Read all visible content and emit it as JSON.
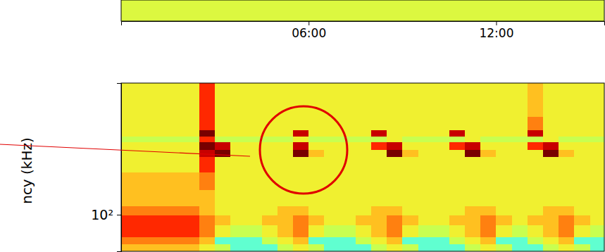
{
  "chart_data": [
    {
      "type": "heatmap",
      "x_edges": [
        0,
        0.5,
        1,
        1.5,
        2,
        2.5,
        3,
        3.5,
        4,
        4.5,
        5,
        5.5,
        6,
        6.5,
        7,
        7.5,
        8,
        8.5,
        9,
        9.5,
        10,
        10.5,
        11,
        11.5,
        12,
        12.5,
        13,
        13.5,
        14,
        14.5,
        15,
        15.5
      ],
      "z": [
        [
          4.5,
          4.5,
          4.5,
          4.5,
          4.5,
          4.5,
          4.5,
          4.5,
          4.5,
          4.5,
          4.5,
          4.5,
          4.5,
          4.5,
          4.5,
          4.5,
          4.5,
          4.5,
          4.5,
          4.5,
          4.5,
          4.5,
          4.5,
          4.5,
          4.5,
          4.5,
          4.5,
          4.5,
          4.5,
          4.5,
          4.5
        ]
      ],
      "zlim": [
        0,
        10
      ],
      "xlim": [
        0,
        15.46
      ],
      "xticks": [
        {
          "value": 6,
          "label": "06:00"
        },
        {
          "value": 12,
          "label": "12:00"
        }
      ],
      "tick_labels": "x"
    },
    {
      "type": "heatmap",
      "y_label": "ncy (kHz)",
      "x_edges": [
        0,
        0.5,
        1,
        1.5,
        2,
        2.5,
        3,
        3.5,
        4,
        4.5,
        5,
        5.5,
        6,
        6.5,
        7,
        7.5,
        8,
        8.5,
        9,
        9.5,
        10,
        10.5,
        11,
        11.5,
        12,
        12.5,
        13,
        13.5,
        14,
        14.5,
        15,
        15.5
      ],
      "y_edges": [
        55,
        62,
        70,
        85,
        100,
        115,
        150,
        200,
        260,
        290,
        330,
        360,
        400,
        500,
        860
      ],
      "z": [
        [
          6,
          6,
          6,
          6,
          6,
          5,
          4,
          3,
          3,
          3,
          4,
          5,
          4,
          3,
          3,
          3,
          4,
          5,
          4,
          3,
          3,
          3,
          4,
          5,
          4,
          3,
          3,
          4,
          5,
          4,
          3
        ],
        [
          7,
          7,
          7,
          7,
          7,
          6,
          3,
          3,
          3,
          4,
          5,
          6,
          3,
          3,
          3,
          4,
          5,
          6,
          3,
          3,
          3,
          4,
          5,
          6,
          3,
          3,
          4,
          5,
          6,
          3,
          3
        ],
        [
          8,
          8,
          8,
          8,
          8,
          7,
          5,
          4,
          4,
          5,
          6,
          7,
          5,
          4,
          4,
          5,
          6,
          7,
          5,
          4,
          4,
          5,
          6,
          7,
          5,
          4,
          5,
          6,
          7,
          5,
          4
        ],
        [
          8,
          8,
          8,
          8,
          8,
          7,
          6,
          5,
          5,
          6,
          6,
          7,
          6,
          5,
          5,
          6,
          6,
          7,
          6,
          5,
          5,
          6,
          6,
          7,
          6,
          5,
          6,
          6,
          7,
          6,
          5
        ],
        [
          7,
          7,
          7,
          7,
          7,
          6,
          5,
          5,
          5,
          5,
          6,
          6,
          5,
          5,
          5,
          5,
          6,
          6,
          5,
          5,
          5,
          5,
          6,
          6,
          5,
          5,
          5,
          6,
          6,
          5,
          5
        ],
        [
          6,
          6,
          6,
          6,
          6,
          6,
          5,
          5,
          5,
          5,
          5,
          5,
          5,
          5,
          5,
          5,
          5,
          5,
          5,
          5,
          5,
          5,
          5,
          5,
          5,
          5,
          5,
          5,
          5,
          5,
          5
        ],
        [
          6,
          6,
          6,
          6,
          6,
          7,
          5,
          5,
          5,
          5,
          5,
          5,
          5,
          5,
          5,
          5,
          5,
          5,
          5,
          5,
          5,
          5,
          5,
          5,
          5,
          5,
          5,
          5,
          5,
          5,
          5
        ],
        [
          5,
          5,
          5,
          5,
          5,
          8,
          5,
          5,
          5,
          5,
          5,
          5,
          5,
          5,
          5,
          5,
          5,
          5,
          5,
          5,
          5,
          5,
          5,
          5,
          5,
          5,
          5,
          5,
          5,
          5,
          5
        ],
        [
          5,
          5,
          5,
          5,
          5,
          9,
          10,
          5,
          5,
          5,
          5,
          10,
          6,
          5,
          5,
          5,
          5,
          10,
          6,
          5,
          5,
          5,
          10,
          6,
          5,
          5,
          5,
          10,
          6,
          5,
          5
        ],
        [
          5,
          5,
          5,
          5,
          5,
          10,
          9,
          5,
          5,
          5,
          5,
          9,
          5,
          5,
          5,
          5,
          8,
          9,
          5,
          5,
          5,
          8,
          9,
          5,
          5,
          5,
          8,
          9,
          5,
          5,
          5
        ],
        [
          4,
          4,
          4,
          4,
          4,
          8,
          4,
          4,
          4,
          4,
          4,
          5,
          4,
          4,
          4,
          4,
          4,
          5,
          4,
          4,
          4,
          4,
          5,
          4,
          4,
          4,
          4,
          5,
          4,
          4,
          4
        ],
        [
          5,
          5,
          5,
          5,
          5,
          10,
          5,
          5,
          5,
          5,
          5,
          9,
          5,
          5,
          5,
          5,
          9,
          5,
          5,
          5,
          5,
          9,
          5,
          5,
          5,
          5,
          9,
          5,
          5,
          5,
          5
        ],
        [
          5,
          5,
          5,
          5,
          5,
          8,
          5,
          5,
          5,
          5,
          5,
          5,
          5,
          5,
          5,
          5,
          5,
          5,
          5,
          5,
          5,
          5,
          5,
          5,
          5,
          5,
          7,
          5,
          5,
          5,
          5
        ],
        [
          5,
          5,
          5,
          5,
          5,
          8,
          5,
          5,
          5,
          5,
          5,
          5,
          5,
          5,
          5,
          5,
          5,
          5,
          5,
          5,
          5,
          5,
          5,
          5,
          5,
          5,
          6,
          5,
          5,
          5,
          5
        ]
      ],
      "zlim": [
        0,
        10
      ],
      "xlim": [
        0,
        15.46
      ],
      "ylim": [
        55,
        860
      ],
      "yticks": [
        {
          "value": 100,
          "label": "10²"
        }
      ],
      "log": "y",
      "tick_labels": "y"
    }
  ]
}
